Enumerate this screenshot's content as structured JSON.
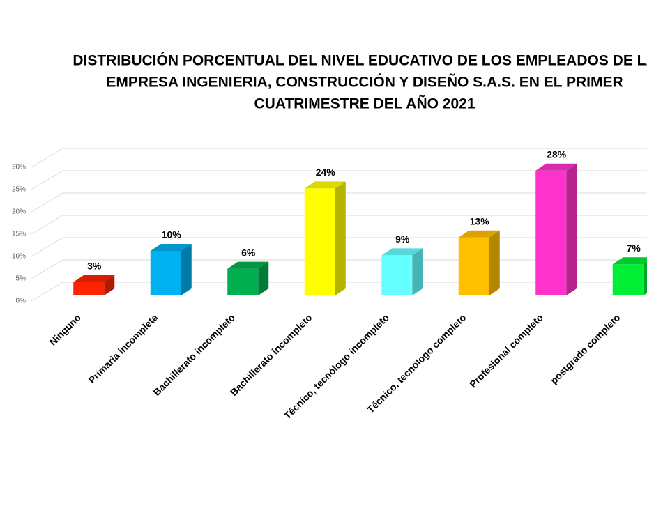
{
  "chart_data": {
    "type": "bar3d",
    "title": [
      "DISTRIBUCIÓN PORCENTUAL DEL NIVEL EDUCATIVO DE LOS EMPLEADOS DE LA",
      "EMPRESA INGENIERIA, CONSTRUCCIÓN Y DISEÑO S.A.S. EN EL PRIMER",
      "CUATRIMESTRE DEL AÑO  2021"
    ],
    "categories": [
      "Ninguno",
      "Primaria incompleta",
      "Bachillerato incompleto",
      "Bachillerato incompleto",
      "Técnico, tecnólogo incompleto",
      "Técnico, tecnólogo completo",
      "Profesional completo",
      "postgrado completo"
    ],
    "values": [
      3,
      10,
      6,
      24,
      9,
      13,
      28,
      7
    ],
    "value_labels": [
      "3%",
      "10%",
      "6%",
      "24%",
      "9%",
      "13%",
      "28%",
      "7%"
    ],
    "colors": [
      "#ff2200",
      "#00b0f0",
      "#00b050",
      "#ffff00",
      "#66ffff",
      "#ffc000",
      "#ff33cc",
      "#00ee33"
    ],
    "ylim": [
      0,
      30
    ],
    "yticks": [
      {
        "value": 0,
        "label": "0%"
      },
      {
        "value": 5,
        "label": "5%"
      },
      {
        "value": 10,
        "label": "10%"
      },
      {
        "value": 15,
        "label": "15%"
      },
      {
        "value": 20,
        "label": "20%"
      },
      {
        "value": 25,
        "label": "25%"
      },
      {
        "value": 30,
        "label": "30%"
      }
    ],
    "grid": true
  }
}
